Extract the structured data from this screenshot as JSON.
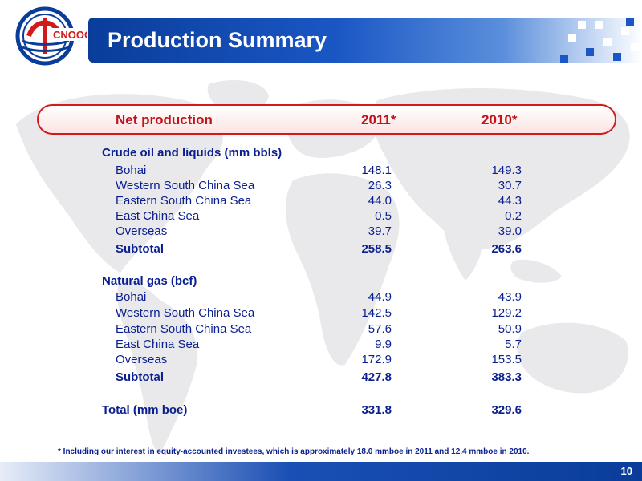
{
  "header": {
    "title": "Production Summary",
    "logo_icon": "cnooc-logo-icon",
    "colors": {
      "title_bar": "#0a3d9a",
      "accent_red": "#c4121a",
      "text_blue": "#0a1f8f"
    }
  },
  "table": {
    "header_label": "Net production",
    "col_2011": "2011*",
    "col_2010": "2010*",
    "sections": [
      {
        "title": "Crude oil and liquids (mm bbls)",
        "rows": [
          {
            "label": "Bohai",
            "v2011": "148.1",
            "v2010": "149.3"
          },
          {
            "label": "Western South China Sea",
            "v2011": "26.3",
            "v2010": "30.7"
          },
          {
            "label": "Eastern South China Sea",
            "v2011": "44.0",
            "v2010": "44.3"
          },
          {
            "label": "East China Sea",
            "v2011": "0.5",
            "v2010": "0.2"
          },
          {
            "label": "Overseas",
            "v2011": "39.7",
            "v2010": "39.0"
          }
        ],
        "subtotal": {
          "label": "Subtotal",
          "v2011": "258.5",
          "v2010": "263.6"
        }
      },
      {
        "title": "Natural gas (bcf)",
        "rows": [
          {
            "label": "Bohai",
            "v2011": "44.9",
            "v2010": "43.9"
          },
          {
            "label": "Western South China Sea",
            "v2011": "142.5",
            "v2010": "129.2"
          },
          {
            "label": "Eastern South China Sea",
            "v2011": "57.6",
            "v2010": "50.9"
          },
          {
            "label": "East China Sea",
            "v2011": "9.9",
            "v2010": "5.7"
          },
          {
            "label": "Overseas",
            "v2011": "172.9",
            "v2010": "153.5"
          }
        ],
        "subtotal": {
          "label": "Subtotal",
          "v2011": "427.8",
          "v2010": "383.3"
        }
      }
    ],
    "total": {
      "label": "Total (mm boe)",
      "v2011": "331.8",
      "v2010": "329.6"
    }
  },
  "footnote": "* Including our interest in equity-accounted investees, which is approximately 18.0 mmboe in 2011 and 12.4 mmboe in 2010.",
  "page_number": "10"
}
